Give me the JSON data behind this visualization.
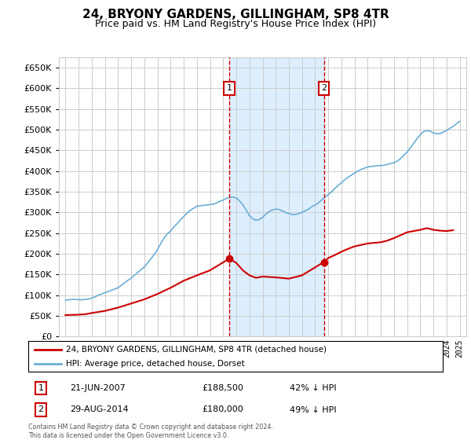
{
  "title": "24, BRYONY GARDENS, GILLINGHAM, SP8 4TR",
  "subtitle": "Price paid vs. HM Land Registry's House Price Index (HPI)",
  "legend_line1": "24, BRYONY GARDENS, GILLINGHAM, SP8 4TR (detached house)",
  "legend_line2": "HPI: Average price, detached house, Dorset",
  "footer": "Contains HM Land Registry data © Crown copyright and database right 2024.\nThis data is licensed under the Open Government Licence v3.0.",
  "transactions": [
    {
      "id": 1,
      "date": "21-JUN-2007",
      "price": 188500,
      "pct": "42% ↓ HPI",
      "year": 2007.47
    },
    {
      "id": 2,
      "date": "29-AUG-2014",
      "price": 180000,
      "pct": "49% ↓ HPI",
      "year": 2014.66
    }
  ],
  "hpi_color": "#6baed6",
  "price_color": "#cc0000",
  "marker_box_color": "#cc0000",
  "shade_color": "#ddeeff",
  "background_color": "#ffffff",
  "grid_color": "#cccccc",
  "ylim": [
    0,
    675000
  ],
  "ytick_step": 50000,
  "xlim_start": 1994.5,
  "xlim_end": 2025.5,
  "hpi_data": {
    "years": [
      1995.0,
      1995.25,
      1995.5,
      1995.75,
      1996.0,
      1996.25,
      1996.5,
      1996.75,
      1997.0,
      1997.25,
      1997.5,
      1997.75,
      1998.0,
      1998.25,
      1998.5,
      1998.75,
      1999.0,
      1999.25,
      1999.5,
      1999.75,
      2000.0,
      2000.25,
      2000.5,
      2000.75,
      2001.0,
      2001.25,
      2001.5,
      2001.75,
      2002.0,
      2002.25,
      2002.5,
      2002.75,
      2003.0,
      2003.25,
      2003.5,
      2003.75,
      2004.0,
      2004.25,
      2004.5,
      2004.75,
      2005.0,
      2005.25,
      2005.5,
      2005.75,
      2006.0,
      2006.25,
      2006.5,
      2006.75,
      2007.0,
      2007.25,
      2007.5,
      2007.75,
      2008.0,
      2008.25,
      2008.5,
      2008.75,
      2009.0,
      2009.25,
      2009.5,
      2009.75,
      2010.0,
      2010.25,
      2010.5,
      2010.75,
      2011.0,
      2011.25,
      2011.5,
      2011.75,
      2012.0,
      2012.25,
      2012.5,
      2012.75,
      2013.0,
      2013.25,
      2013.5,
      2013.75,
      2014.0,
      2014.25,
      2014.5,
      2014.75,
      2015.0,
      2015.25,
      2015.5,
      2015.75,
      2016.0,
      2016.25,
      2016.5,
      2016.75,
      2017.0,
      2017.25,
      2017.5,
      2017.75,
      2018.0,
      2018.25,
      2018.5,
      2018.75,
      2019.0,
      2019.25,
      2019.5,
      2019.75,
      2020.0,
      2020.25,
      2020.5,
      2020.75,
      2021.0,
      2021.25,
      2021.5,
      2021.75,
      2022.0,
      2022.25,
      2022.5,
      2022.75,
      2023.0,
      2023.25,
      2023.5,
      2023.75,
      2024.0,
      2024.25,
      2024.5,
      2024.75,
      2025.0
    ],
    "values": [
      88000,
      89000,
      90000,
      90000,
      89000,
      89000,
      90000,
      91000,
      93000,
      96000,
      100000,
      103000,
      106000,
      109000,
      112000,
      115000,
      118000,
      124000,
      130000,
      136000,
      141000,
      148000,
      155000,
      162000,
      168000,
      178000,
      188000,
      198000,
      210000,
      225000,
      238000,
      248000,
      255000,
      265000,
      273000,
      282000,
      290000,
      298000,
      305000,
      310000,
      315000,
      316000,
      317000,
      318000,
      319000,
      320000,
      323000,
      327000,
      330000,
      334000,
      336000,
      337000,
      335000,
      328000,
      318000,
      306000,
      292000,
      285000,
      281000,
      283000,
      288000,
      296000,
      302000,
      306000,
      308000,
      307000,
      304000,
      300000,
      297000,
      295000,
      295000,
      297000,
      300000,
      304000,
      308000,
      314000,
      318000,
      323000,
      330000,
      337000,
      343000,
      350000,
      358000,
      365000,
      372000,
      379000,
      385000,
      390000,
      395000,
      400000,
      404000,
      407000,
      410000,
      411000,
      412000,
      413000,
      413000,
      414000,
      416000,
      418000,
      420000,
      424000,
      430000,
      438000,
      446000,
      456000,
      467000,
      478000,
      488000,
      495000,
      498000,
      496000,
      492000,
      490000,
      491000,
      494000,
      498000,
      503000,
      508000,
      514000,
      520000
    ]
  },
  "price_paid_data": {
    "years": [
      1995.0,
      1996.0,
      1996.5,
      1997.0,
      1998.0,
      1999.0,
      2000.0,
      2001.0,
      2002.0,
      2003.0,
      2004.0,
      2005.0,
      2006.0,
      2007.47,
      2008.0,
      2008.5,
      2009.0,
      2009.5,
      2010.0,
      2011.0,
      2012.0,
      2013.0,
      2014.66,
      2015.0,
      2015.5,
      2016.0,
      2016.5,
      2017.0,
      2018.0,
      2019.0,
      2019.5,
      2020.0,
      2020.5,
      2021.0,
      2022.0,
      2022.5,
      2023.0,
      2023.5,
      2024.0,
      2024.5
    ],
    "values": [
      52000,
      53000,
      54000,
      57000,
      62000,
      70000,
      80000,
      90000,
      103000,
      118000,
      135000,
      148000,
      160000,
      188500,
      178000,
      160000,
      148000,
      142000,
      145000,
      143000,
      140000,
      148000,
      180000,
      190000,
      197000,
      205000,
      212000,
      218000,
      225000,
      228000,
      232000,
      238000,
      245000,
      252000,
      258000,
      262000,
      258000,
      256000,
      255000,
      257000
    ]
  }
}
